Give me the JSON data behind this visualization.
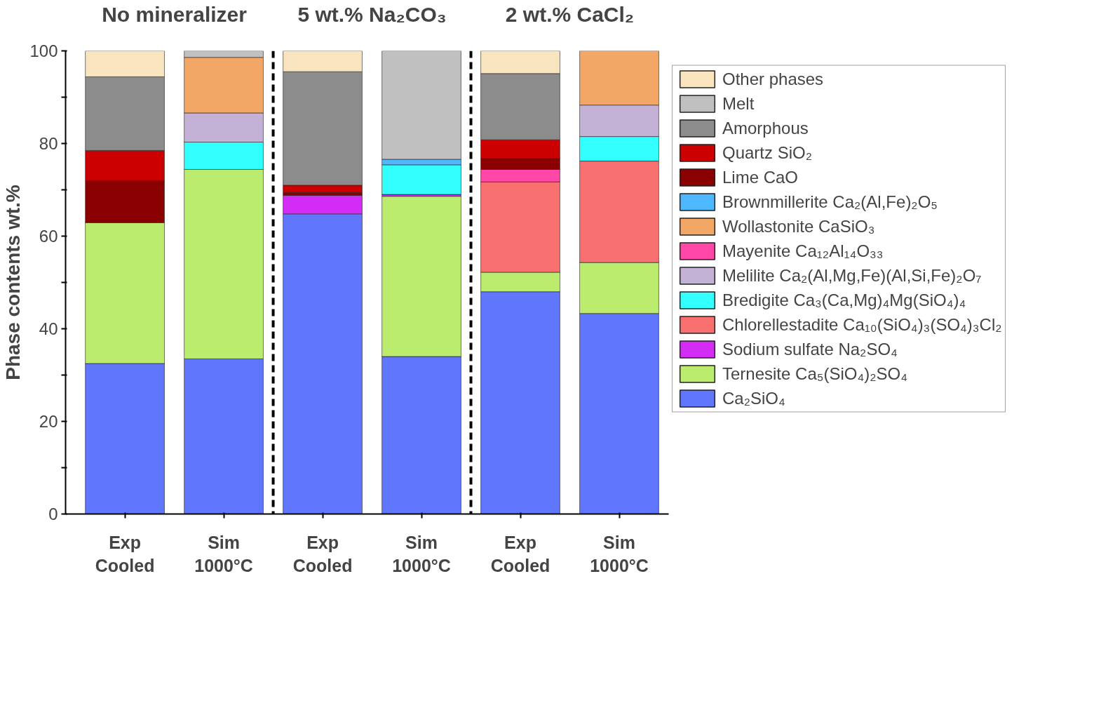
{
  "chart_data": {
    "type": "bar",
    "stacked": true,
    "ylabel": "Phase contents wt.%",
    "categories": [
      "Exp\nCooled",
      "Sim\n1000°C",
      "Exp\nCooled",
      "Sim\n1000°C",
      "Exp\nCooled",
      "Sim\n1000°C"
    ],
    "ylim": [
      0,
      100
    ],
    "yticks": [
      0,
      {
        "value": 10,
        "label": null
      },
      20,
      {
        "value": 30,
        "label": null
      },
      40,
      {
        "value": 50,
        "label": null
      },
      60,
      {
        "value": 70,
        "label": null
      },
      80,
      {
        "value": 90,
        "label": null
      },
      100
    ],
    "grid": false,
    "legend": "right",
    "annotations": [
      "No mineralizer",
      "5 wt.% Na₂CO₃",
      "2 wt.% CaCl₂"
    ],
    "series": [
      {
        "name": "Ca₂SiO₄",
        "color": "#6076fc",
        "values": [
          32.5,
          33.5,
          64.8,
          34.0,
          48.0,
          43.3
        ]
      },
      {
        "name": "Ternesite Ca₅(SiO₄)₂SO₄",
        "color": "#bcec6e",
        "values": [
          30.4,
          40.9,
          null,
          34.6,
          4.2,
          11.0
        ]
      },
      {
        "name": "Sodium sulfate Na₂SO₄",
        "color": "#d42cf7",
        "values": [
          null,
          null,
          4.0,
          0.4,
          null,
          null
        ]
      },
      {
        "name": "Chlorellestadite Ca₁₀(SiO₄)₃(SO₄)₃Cl₂",
        "color": "#f87070",
        "values": [
          null,
          null,
          null,
          null,
          19.5,
          21.9
        ]
      },
      {
        "name": "Bredigite Ca₃(Ca,Mg)₄Mg(SiO₄)₄",
        "color": "#33ffff",
        "values": [
          null,
          5.9,
          null,
          6.4,
          null,
          5.3
        ]
      },
      {
        "name": "Melilite Ca₂(Al,Mg,Fe)(Al,Si,Fe)₂O₇",
        "color": "#c3b1d6",
        "values": [
          null,
          6.3,
          null,
          null,
          null,
          6.8
        ]
      },
      {
        "name": "Mayenite Ca₁₂Al₁₄O₃₃",
        "color": "#ff47a8",
        "values": [
          null,
          null,
          null,
          null,
          2.7,
          null
        ]
      },
      {
        "name": "Wollastonite CaSiO₃",
        "color": "#f2a766",
        "values": [
          null,
          12.0,
          null,
          null,
          null,
          11.7
        ]
      },
      {
        "name": "Brownmillerite Ca₂(Al,Fe)₂O₅",
        "color": "#4db8ff",
        "values": [
          null,
          null,
          null,
          1.2,
          null,
          null
        ]
      },
      {
        "name": "Lime CaO",
        "color": "#8b0000",
        "values": [
          9.1,
          null,
          0.6,
          null,
          2.4,
          null
        ]
      },
      {
        "name": "Quartz SiO₂",
        "color": "#cc0000",
        "values": [
          6.5,
          null,
          1.6,
          null,
          4.0,
          null
        ]
      },
      {
        "name": "Amorphous",
        "color": "#8c8c8c",
        "values": [
          15.9,
          null,
          24.5,
          null,
          14.3,
          null
        ]
      },
      {
        "name": "Melt",
        "color": "#c0c0c0",
        "values": [
          null,
          1.4,
          null,
          23.4,
          null,
          null
        ]
      },
      {
        "name": "Other phases",
        "color": "#f8e5c0",
        "values": [
          5.6,
          null,
          4.5,
          null,
          4.9,
          null
        ]
      }
    ]
  }
}
